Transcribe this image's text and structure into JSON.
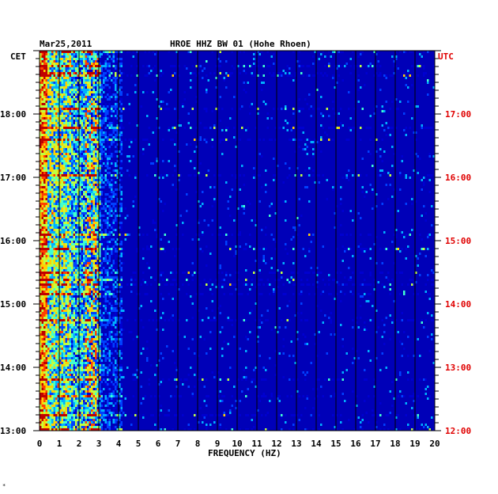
{
  "chart_data": {
    "type": "heatmap",
    "header": {
      "date": "Mar25,2011",
      "station": "HROE HHZ BW 01 (Hohe Rhoen)"
    },
    "left_axis": {
      "label": "CET",
      "ticks": [
        "18:00",
        "17:00",
        "16:00",
        "15:00",
        "14:00",
        "13:00"
      ]
    },
    "right_axis": {
      "label": "UTC",
      "ticks": [
        "17:00",
        "16:00",
        "15:00",
        "14:00",
        "13:00",
        "12:00"
      ]
    },
    "x_axis": {
      "label": "FREQUENCY (HZ)",
      "min": 0,
      "max": 20,
      "ticks": [
        "0",
        "1",
        "2",
        "3",
        "4",
        "5",
        "6",
        "7",
        "8",
        "9",
        "10",
        "11",
        "12",
        "13",
        "14",
        "15",
        "16",
        "17",
        "18",
        "19",
        "20"
      ]
    },
    "background_color": "#0000b8",
    "colormap": [
      "#00008c",
      "#0000d0",
      "#0040ff",
      "#00b0ff",
      "#40ffd0",
      "#c0ff40",
      "#ffd000",
      "#ff4000",
      "#c00000"
    ],
    "footnote": "*"
  }
}
